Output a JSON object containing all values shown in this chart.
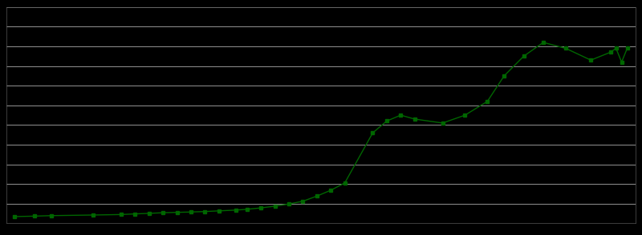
{
  "years": [
    1793,
    1800,
    1806,
    1821,
    1831,
    1836,
    1841,
    1846,
    1851,
    1856,
    1861,
    1866,
    1872,
    1876,
    1881,
    1886,
    1891,
    1896,
    1901,
    1906,
    1911,
    1921,
    1926,
    1931,
    1936,
    1946,
    1954,
    1962,
    1968,
    1975,
    1982,
    1990,
    1999,
    2006,
    2008,
    2010,
    2012
  ],
  "population": [
    339,
    362,
    388,
    419,
    444,
    476,
    504,
    535,
    554,
    573,
    596,
    630,
    670,
    710,
    780,
    870,
    980,
    1120,
    1380,
    1680,
    2050,
    4600,
    5200,
    5500,
    5300,
    5100,
    5500,
    6200,
    7500,
    8500,
    9200,
    8900,
    8300,
    8700,
    8900,
    8200,
    8900
  ],
  "line_color": "#006600",
  "marker": "s",
  "marker_size": 2.5,
  "linewidth": 1.0,
  "bg_color": "#000000",
  "grid_color": "#aaaaaa",
  "spine_color": "#555555",
  "ylim": [
    0,
    11000
  ],
  "xlim": [
    1790,
    2015
  ],
  "grid_step": 1000
}
